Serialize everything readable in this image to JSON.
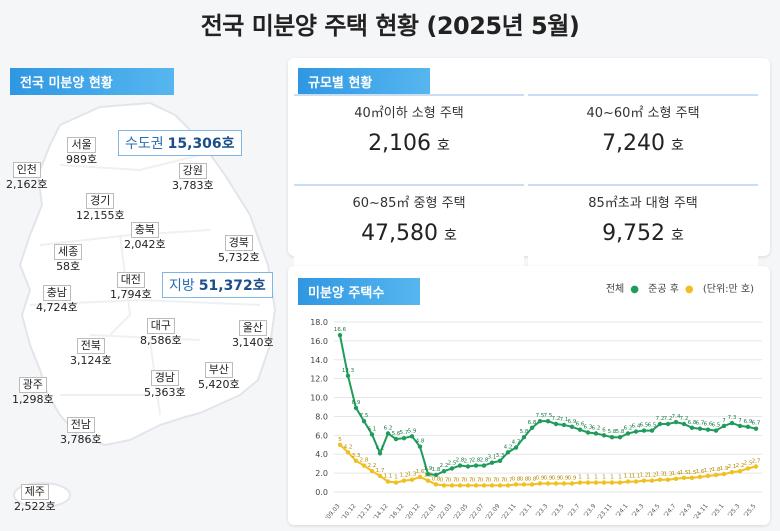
{
  "title": "전국 미분양 주택 현황 (2025년 5월)",
  "map_section": {
    "label": "전국 미분양 현황",
    "capital_area": {
      "label": "수도권",
      "value": "15,306호"
    },
    "provinces": {
      "label": "지방",
      "value": "51,372호"
    },
    "regions": [
      {
        "name": "서울",
        "value": "989호"
      },
      {
        "name": "인천",
        "value": "2,162호"
      },
      {
        "name": "경기",
        "value": "12,155호"
      },
      {
        "name": "강원",
        "value": "3,783호"
      },
      {
        "name": "충북",
        "value": "2,042호"
      },
      {
        "name": "세종",
        "value": "58호"
      },
      {
        "name": "경북",
        "value": "5,732호"
      },
      {
        "name": "충남",
        "value": "4,724호"
      },
      {
        "name": "대전",
        "value": "1,794호"
      },
      {
        "name": "대구",
        "value": "8,586호"
      },
      {
        "name": "울산",
        "value": "3,140호"
      },
      {
        "name": "전북",
        "value": "3,124호"
      },
      {
        "name": "경남",
        "value": "5,363호"
      },
      {
        "name": "부산",
        "value": "5,420호"
      },
      {
        "name": "광주",
        "value": "1,298호"
      },
      {
        "name": "전남",
        "value": "3,786호"
      },
      {
        "name": "제주",
        "value": "2,522호"
      }
    ]
  },
  "size_section": {
    "label": "규모별 현황",
    "cells": [
      {
        "label": "40㎡이하 소형 주택",
        "value": "2,106",
        "unit": "호"
      },
      {
        "label": "40~60㎡ 소형 주택",
        "value": "7,240",
        "unit": "호"
      },
      {
        "label": "60~85㎡ 중형 주택",
        "value": "47,580",
        "unit": "호"
      },
      {
        "label": "85㎡초과 대형 주택",
        "value": "9,752",
        "unit": "호"
      }
    ]
  },
  "chart_section": {
    "label": "미분양 주택수",
    "legend": {
      "total": "전체",
      "completed": "준공 후",
      "unit": "(단위:만 호)"
    }
  },
  "colors": {
    "accent": "#2f97e2",
    "total": "#1f9c5c",
    "completed": "#f0c020"
  },
  "chart_data": {
    "type": "line",
    "ylim": [
      0,
      18
    ],
    "yticks": [
      "0.0",
      "2.0",
      "4.0",
      "6.0",
      "8.0",
      "10.0",
      "12.0",
      "14.0",
      "16.0",
      "18.0"
    ],
    "xticks": [
      "'09.03",
      "'10.12",
      "'12.12",
      "'14.12",
      "'16.12",
      "'20.12",
      "'22.01",
      "'22.03",
      "'22.05",
      "'22.07",
      "'22.09",
      "'22.11",
      "'23.1",
      "'23.3",
      "'23.5",
      "'23.7",
      "'23.9",
      "'23.11",
      "'24.1",
      "'24.3",
      "'24.5",
      "'24.7",
      "'24.9",
      "'24.11",
      "'25.1",
      "'25.3",
      "'25.5"
    ],
    "series": [
      {
        "name": "전체",
        "values": [
          16.6,
          12.3,
          8.9,
          7.5,
          6.1,
          4.1,
          6.2,
          5.6,
          5.7,
          5.9,
          4.8,
          1.9,
          1.8,
          2.2,
          2.5,
          2.8,
          2.7,
          2.8,
          2.8,
          3.1,
          3.3,
          4.2,
          4.7,
          5.8,
          6.8,
          7.5,
          7.5,
          7.2,
          7.1,
          6.9,
          6.6,
          6.3,
          6.2,
          6.0,
          5.8,
          5.8,
          6.2,
          6.4,
          6.5,
          6.5,
          7.2,
          7.2,
          7.4,
          7.2,
          6.8,
          6.7,
          6.6,
          6.5,
          7.0,
          7.3,
          7.0,
          6.9,
          6.7
        ]
      },
      {
        "name": "준공 후",
        "values": [
          5.0,
          4.2,
          3.3,
          2.8,
          2.2,
          1.7,
          1.1,
          1.0,
          1.2,
          1.3,
          1.6,
          1.2,
          0.8,
          0.7,
          0.7,
          0.7,
          0.7,
          0.7,
          0.7,
          0.7,
          0.7,
          0.7,
          0.8,
          0.8,
          0.8,
          0.9,
          0.9,
          0.9,
          0.9,
          0.9,
          1.0,
          1.0,
          1.0,
          1.0,
          1.0,
          1.0,
          1.1,
          1.1,
          1.2,
          1.2,
          1.3,
          1.3,
          1.4,
          1.5,
          1.5,
          1.6,
          1.7,
          1.8,
          1.9,
          2.1,
          2.2,
          2.5,
          2.7
        ]
      }
    ]
  }
}
